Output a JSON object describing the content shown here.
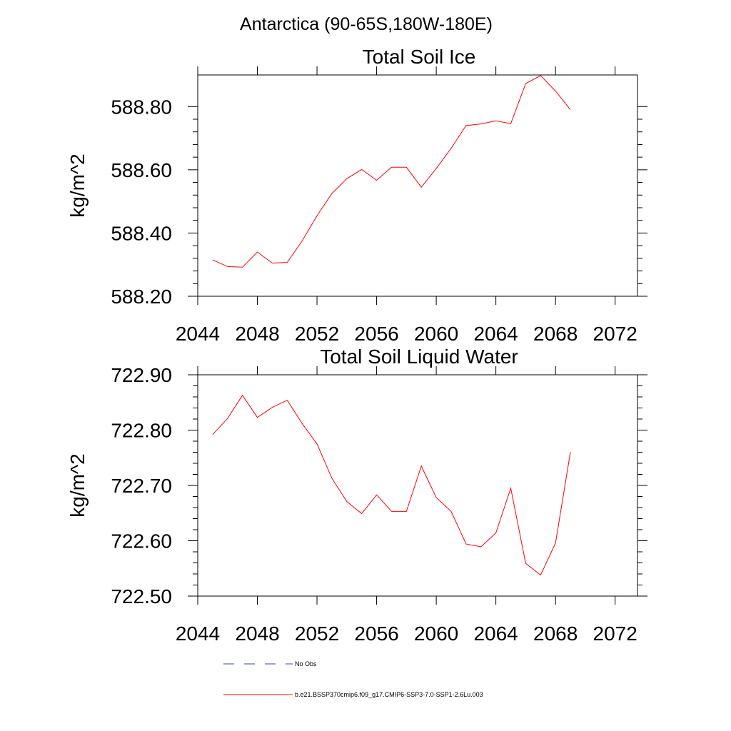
{
  "figure": {
    "suptitle": "Antarctica (90-65S,180W-180E)"
  },
  "legend": [
    {
      "label": "No Obs",
      "style": "dashed",
      "color": "#3a4a8a"
    },
    {
      "label": "b.e21.BSSP370cmip6.f09_g17.CMIP6-SSP3-7.0-SSP1-2.6Lu.003",
      "style": "solid",
      "color": "#ff0000"
    }
  ],
  "chart_data": [
    {
      "type": "line",
      "title": "Total Soil Ice",
      "xlabel": "",
      "ylabel": "kg/m^2",
      "xlim": [
        2044,
        2073.5
      ],
      "ylim": [
        588.2,
        588.9
      ],
      "xticks": [
        2044,
        2048,
        2052,
        2056,
        2060,
        2064,
        2068,
        2072
      ],
      "xtick_labels": [
        "2044",
        "2048",
        "2052",
        "2056",
        "2060",
        "2064",
        "2068",
        "2072"
      ],
      "yticks": [
        588.2,
        588.4,
        588.6,
        588.8
      ],
      "ytick_labels": [
        "588.20",
        "588.40",
        "588.60",
        "588.80"
      ],
      "grid": false,
      "series": [
        {
          "name": "b.e21.BSSP370cmip6.f09_g17.CMIP6-SSP3-7.0-SSP1-2.6Lu.003",
          "color": "#ff0000",
          "x": [
            2045,
            2046,
            2047,
            2048,
            2049,
            2050,
            2051,
            2052,
            2053,
            2054,
            2055,
            2056,
            2057,
            2058,
            2059,
            2060,
            2061,
            2062,
            2063,
            2064,
            2065,
            2066,
            2067,
            2068,
            2069
          ],
          "y": [
            588.315,
            588.294,
            588.292,
            588.34,
            588.305,
            588.307,
            588.375,
            588.455,
            588.525,
            588.572,
            588.601,
            588.567,
            588.608,
            588.608,
            588.545,
            588.604,
            588.668,
            588.74,
            588.745,
            588.755,
            588.746,
            588.873,
            588.898,
            588.849,
            588.79
          ]
        }
      ]
    },
    {
      "type": "line",
      "title": "Total Soil Liquid Water",
      "xlabel": "",
      "ylabel": "kg/m^2",
      "xlim": [
        2044,
        2073.5
      ],
      "ylim": [
        722.5,
        722.9
      ],
      "xticks": [
        2044,
        2048,
        2052,
        2056,
        2060,
        2064,
        2068,
        2072
      ],
      "xtick_labels": [
        "2044",
        "2048",
        "2052",
        "2056",
        "2060",
        "2064",
        "2068",
        "2072"
      ],
      "yticks": [
        722.5,
        722.6,
        722.7,
        722.8,
        722.9
      ],
      "ytick_labels": [
        "722.50",
        "722.60",
        "722.70",
        "722.80",
        "722.90"
      ],
      "grid": false,
      "series": [
        {
          "name": "b.e21.BSSP370cmip6.f09_g17.CMIP6-SSP3-7.0-SSP1-2.6Lu.003",
          "color": "#ff0000",
          "x": [
            2045,
            2046,
            2047,
            2048,
            2049,
            2050,
            2051,
            2052,
            2053,
            2054,
            2055,
            2056,
            2057,
            2058,
            2059,
            2060,
            2061,
            2062,
            2063,
            2064,
            2065,
            2066,
            2067,
            2068,
            2069
          ],
          "y": [
            722.792,
            722.821,
            722.863,
            722.823,
            722.841,
            722.854,
            722.812,
            722.775,
            722.713,
            722.671,
            722.649,
            722.683,
            722.653,
            722.653,
            722.735,
            722.678,
            722.653,
            722.594,
            722.589,
            722.614,
            722.695,
            722.559,
            722.538,
            722.596,
            722.76
          ]
        }
      ]
    }
  ]
}
